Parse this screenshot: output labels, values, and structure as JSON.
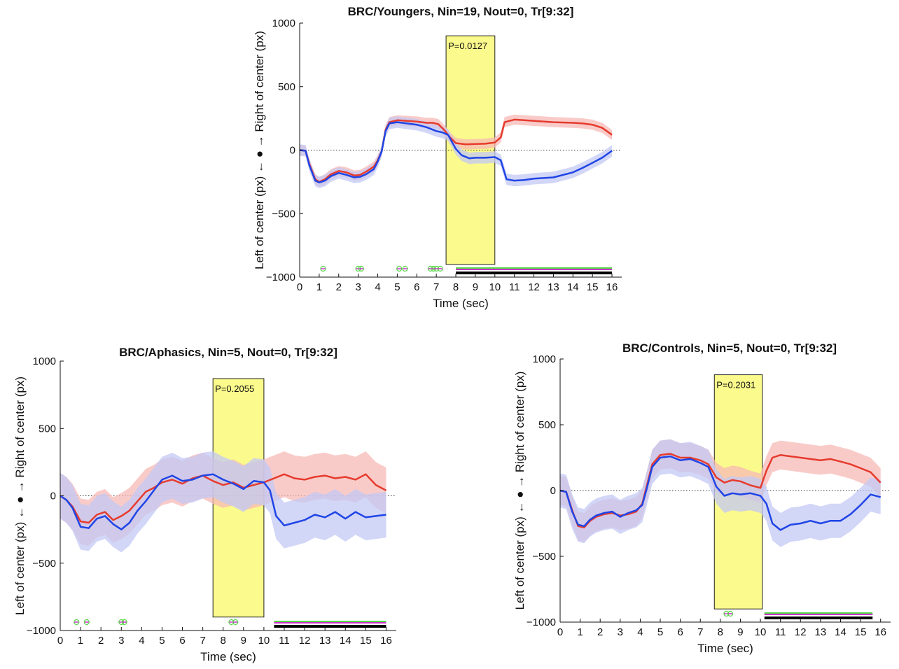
{
  "chart_data": [
    {
      "type": "line",
      "title": "BRC/Youngers, Nin=19, Nout=0, Tr[9:32]",
      "xlabel": "Time (sec)",
      "ylabel": "Left of center (px) ← ● → Right of center (px)",
      "xlim": [
        0,
        16.5
      ],
      "ylim": [
        -1000,
        1000
      ],
      "xticks": [
        0,
        1,
        2,
        3,
        4,
        5,
        6,
        7,
        8,
        9,
        10,
        11,
        12,
        13,
        14,
        15,
        16
      ],
      "yticks": [
        -1000,
        -500,
        0,
        500,
        1000
      ],
      "highlight": {
        "x0": 7.5,
        "x1": 10.0,
        "top": 900,
        "bottom": -900,
        "label": "P=0.0127",
        "color": "#fbfa8c"
      },
      "series": [
        {
          "color": "#e63b2e",
          "band": "#f7b9b6",
          "band_width": 40,
          "points": [
            [
              0,
              0
            ],
            [
              0.3,
              -5
            ],
            [
              0.5,
              -110
            ],
            [
              0.8,
              -230
            ],
            [
              1.0,
              -250
            ],
            [
              1.3,
              -230
            ],
            [
              1.6,
              -190
            ],
            [
              2.0,
              -165
            ],
            [
              2.4,
              -175
            ],
            [
              2.8,
              -200
            ],
            [
              3.1,
              -195
            ],
            [
              3.4,
              -170
            ],
            [
              3.8,
              -130
            ],
            [
              4.0,
              -80
            ],
            [
              4.2,
              -10
            ],
            [
              4.4,
              160
            ],
            [
              4.6,
              220
            ],
            [
              5.0,
              235
            ],
            [
              5.5,
              230
            ],
            [
              6.0,
              225
            ],
            [
              6.5,
              215
            ],
            [
              6.8,
              215
            ],
            [
              7.1,
              205
            ],
            [
              7.4,
              160
            ],
            [
              7.7,
              100
            ],
            [
              8.0,
              55
            ],
            [
              8.5,
              45
            ],
            [
              9.0,
              48
            ],
            [
              9.5,
              50
            ],
            [
              10.0,
              60
            ],
            [
              10.3,
              100
            ],
            [
              10.5,
              220
            ],
            [
              11.0,
              240
            ],
            [
              11.5,
              235
            ],
            [
              12.0,
              230
            ],
            [
              13.0,
              220
            ],
            [
              14.0,
              215
            ],
            [
              14.5,
              210
            ],
            [
              15.0,
              200
            ],
            [
              15.5,
              175
            ],
            [
              16.0,
              120
            ]
          ]
        },
        {
          "color": "#1f45e6",
          "band": "#c3c8f4",
          "band_width": 45,
          "points": [
            [
              0,
              0
            ],
            [
              0.3,
              -5
            ],
            [
              0.5,
              -120
            ],
            [
              0.8,
              -240
            ],
            [
              1.0,
              -255
            ],
            [
              1.3,
              -240
            ],
            [
              1.6,
              -205
            ],
            [
              2.0,
              -180
            ],
            [
              2.4,
              -195
            ],
            [
              2.8,
              -215
            ],
            [
              3.1,
              -210
            ],
            [
              3.4,
              -190
            ],
            [
              3.8,
              -150
            ],
            [
              4.0,
              -90
            ],
            [
              4.2,
              -10
            ],
            [
              4.4,
              150
            ],
            [
              4.6,
              210
            ],
            [
              5.0,
              220
            ],
            [
              5.5,
              210
            ],
            [
              6.0,
              200
            ],
            [
              6.5,
              180
            ],
            [
              7.0,
              150
            ],
            [
              7.3,
              140
            ],
            [
              7.6,
              120
            ],
            [
              8.0,
              10
            ],
            [
              8.3,
              -40
            ],
            [
              8.7,
              -65
            ],
            [
              9.0,
              -60
            ],
            [
              9.5,
              -60
            ],
            [
              10.0,
              -55
            ],
            [
              10.3,
              -80
            ],
            [
              10.6,
              -230
            ],
            [
              11.0,
              -240
            ],
            [
              11.5,
              -235
            ],
            [
              12.0,
              -225
            ],
            [
              13.0,
              -215
            ],
            [
              14.0,
              -175
            ],
            [
              14.5,
              -140
            ],
            [
              15.0,
              -100
            ],
            [
              15.5,
              -60
            ],
            [
              16.0,
              -5
            ]
          ]
        }
      ],
      "sig_bar": {
        "x0": 8.0,
        "x1": 16.0
      },
      "sig_marks": [
        1.2,
        3.0,
        3.15,
        5.1,
        5.4,
        6.7,
        6.85,
        7.0,
        7.2
      ]
    },
    {
      "type": "line",
      "title": "BRC/Aphasics, Nin=5, Nout=0, Tr[9:32]",
      "xlabel": "Time (sec)",
      "ylabel": "Left of center (px) ← ● → Right of center (px)",
      "xlim": [
        0,
        16.5
      ],
      "ylim": [
        -1000,
        1000
      ],
      "xticks": [
        0,
        1,
        2,
        3,
        4,
        5,
        6,
        7,
        8,
        9,
        10,
        11,
        12,
        13,
        14,
        15,
        16
      ],
      "yticks": [
        -1000,
        -500,
        0,
        500,
        1000
      ],
      "highlight": {
        "x0": 7.5,
        "x1": 10.0,
        "top": 870,
        "bottom": -900,
        "label": "P=0.2055",
        "color": "#fbfa8c"
      },
      "series": [
        {
          "color": "#e63b2e",
          "band": "#f7b9b6",
          "band_width": 170,
          "points": [
            [
              0,
              0
            ],
            [
              0.3,
              -30
            ],
            [
              0.6,
              -80
            ],
            [
              1.0,
              -190
            ],
            [
              1.4,
              -200
            ],
            [
              1.8,
              -140
            ],
            [
              2.2,
              -120
            ],
            [
              2.6,
              -180
            ],
            [
              3.0,
              -150
            ],
            [
              3.4,
              -110
            ],
            [
              3.8,
              -40
            ],
            [
              4.2,
              30
            ],
            [
              4.6,
              60
            ],
            [
              5.0,
              100
            ],
            [
              5.5,
              120
            ],
            [
              6.0,
              90
            ],
            [
              6.5,
              130
            ],
            [
              7.0,
              150
            ],
            [
              7.5,
              110
            ],
            [
              8.0,
              80
            ],
            [
              8.5,
              100
            ],
            [
              9.0,
              60
            ],
            [
              9.5,
              80
            ],
            [
              10.0,
              100
            ],
            [
              10.5,
              130
            ],
            [
              11.0,
              160
            ],
            [
              11.5,
              130
            ],
            [
              12.0,
              120
            ],
            [
              12.5,
              140
            ],
            [
              13.0,
              150
            ],
            [
              13.5,
              130
            ],
            [
              14.0,
              140
            ],
            [
              14.5,
              120
            ],
            [
              15.0,
              160
            ],
            [
              15.5,
              80
            ],
            [
              16.0,
              40
            ]
          ]
        },
        {
          "color": "#1f45e6",
          "band": "#c3c8f4",
          "band_width": 170,
          "points": [
            [
              0,
              0
            ],
            [
              0.3,
              -30
            ],
            [
              0.6,
              -90
            ],
            [
              1.0,
              -230
            ],
            [
              1.4,
              -240
            ],
            [
              1.8,
              -170
            ],
            [
              2.2,
              -150
            ],
            [
              2.6,
              -210
            ],
            [
              3.0,
              -250
            ],
            [
              3.4,
              -200
            ],
            [
              3.8,
              -110
            ],
            [
              4.2,
              -40
            ],
            [
              4.6,
              40
            ],
            [
              5.0,
              120
            ],
            [
              5.5,
              150
            ],
            [
              6.0,
              110
            ],
            [
              6.5,
              120
            ],
            [
              7.0,
              150
            ],
            [
              7.5,
              160
            ],
            [
              8.0,
              120
            ],
            [
              8.5,
              90
            ],
            [
              9.0,
              50
            ],
            [
              9.5,
              110
            ],
            [
              10.0,
              100
            ],
            [
              10.3,
              40
            ],
            [
              10.6,
              -150
            ],
            [
              11.0,
              -220
            ],
            [
              11.5,
              -200
            ],
            [
              12.0,
              -180
            ],
            [
              12.5,
              -140
            ],
            [
              13.0,
              -160
            ],
            [
              13.5,
              -120
            ],
            [
              14.0,
              -170
            ],
            [
              14.5,
              -120
            ],
            [
              15.0,
              -160
            ],
            [
              15.5,
              -150
            ],
            [
              16.0,
              -140
            ]
          ]
        }
      ],
      "sig_bar": {
        "x0": 10.5,
        "x1": 16.0
      },
      "sig_marks": [
        0.8,
        1.3,
        3.0,
        3.15,
        8.4,
        8.6
      ]
    },
    {
      "type": "line",
      "title": "BRC/Controls, Nin=5, Nout=0, Tr[9:32]",
      "xlabel": "Time (sec)",
      "ylabel": "Left of center (px) ← ● → Right of center (px)",
      "xlim": [
        0,
        16.5
      ],
      "ylim": [
        -1000,
        1000
      ],
      "xticks": [
        0,
        1,
        2,
        3,
        4,
        5,
        6,
        7,
        8,
        9,
        10,
        11,
        12,
        13,
        14,
        15,
        16
      ],
      "yticks": [
        -1000,
        -500,
        0,
        500,
        1000
      ],
      "highlight": {
        "x0": 7.7,
        "x1": 10.1,
        "top": 880,
        "bottom": -900,
        "label": "P=0.2031",
        "color": "#fbfa8c"
      },
      "series": [
        {
          "color": "#e63b2e",
          "band": "#f7b9b6",
          "band_width": 110,
          "points": [
            [
              0,
              0
            ],
            [
              0.3,
              -10
            ],
            [
              0.6,
              -150
            ],
            [
              0.9,
              -270
            ],
            [
              1.2,
              -280
            ],
            [
              1.5,
              -230
            ],
            [
              1.8,
              -200
            ],
            [
              2.2,
              -180
            ],
            [
              2.6,
              -170
            ],
            [
              3.0,
              -190
            ],
            [
              3.4,
              -180
            ],
            [
              3.8,
              -160
            ],
            [
              4.1,
              -100
            ],
            [
              4.3,
              20
            ],
            [
              4.6,
              200
            ],
            [
              5.0,
              270
            ],
            [
              5.5,
              280
            ],
            [
              6.0,
              250
            ],
            [
              6.5,
              250
            ],
            [
              7.0,
              230
            ],
            [
              7.4,
              200
            ],
            [
              7.8,
              100
            ],
            [
              8.2,
              60
            ],
            [
              8.6,
              80
            ],
            [
              9.0,
              70
            ],
            [
              9.5,
              40
            ],
            [
              10.0,
              20
            ],
            [
              10.3,
              150
            ],
            [
              10.6,
              250
            ],
            [
              11.0,
              270
            ],
            [
              11.5,
              260
            ],
            [
              12.0,
              250
            ],
            [
              12.5,
              240
            ],
            [
              13.0,
              230
            ],
            [
              13.5,
              240
            ],
            [
              14.0,
              220
            ],
            [
              14.5,
              200
            ],
            [
              15.0,
              170
            ],
            [
              15.5,
              140
            ],
            [
              16.0,
              60
            ]
          ]
        },
        {
          "color": "#1f45e6",
          "band": "#c3c8f4",
          "band_width": 130,
          "points": [
            [
              0,
              0
            ],
            [
              0.3,
              -10
            ],
            [
              0.6,
              -160
            ],
            [
              0.9,
              -260
            ],
            [
              1.2,
              -270
            ],
            [
              1.5,
              -220
            ],
            [
              1.8,
              -190
            ],
            [
              2.2,
              -170
            ],
            [
              2.6,
              -160
            ],
            [
              3.0,
              -200
            ],
            [
              3.4,
              -170
            ],
            [
              3.8,
              -150
            ],
            [
              4.1,
              -110
            ],
            [
              4.3,
              0
            ],
            [
              4.6,
              180
            ],
            [
              5.0,
              250
            ],
            [
              5.5,
              260
            ],
            [
              6.0,
              230
            ],
            [
              6.5,
              240
            ],
            [
              7.0,
              210
            ],
            [
              7.4,
              180
            ],
            [
              7.8,
              30
            ],
            [
              8.2,
              -40
            ],
            [
              8.6,
              -20
            ],
            [
              9.0,
              -30
            ],
            [
              9.5,
              -20
            ],
            [
              10.0,
              -40
            ],
            [
              10.3,
              -100
            ],
            [
              10.6,
              -250
            ],
            [
              11.0,
              -300
            ],
            [
              11.5,
              -260
            ],
            [
              12.0,
              -250
            ],
            [
              12.5,
              -230
            ],
            [
              13.0,
              -250
            ],
            [
              13.5,
              -230
            ],
            [
              14.0,
              -230
            ],
            [
              14.5,
              -180
            ],
            [
              15.0,
              -110
            ],
            [
              15.5,
              -30
            ],
            [
              16.0,
              -50
            ]
          ]
        }
      ],
      "sig_bar": {
        "x0": 10.2,
        "x1": 15.6
      },
      "sig_marks": [
        8.3,
        8.5
      ]
    }
  ]
}
